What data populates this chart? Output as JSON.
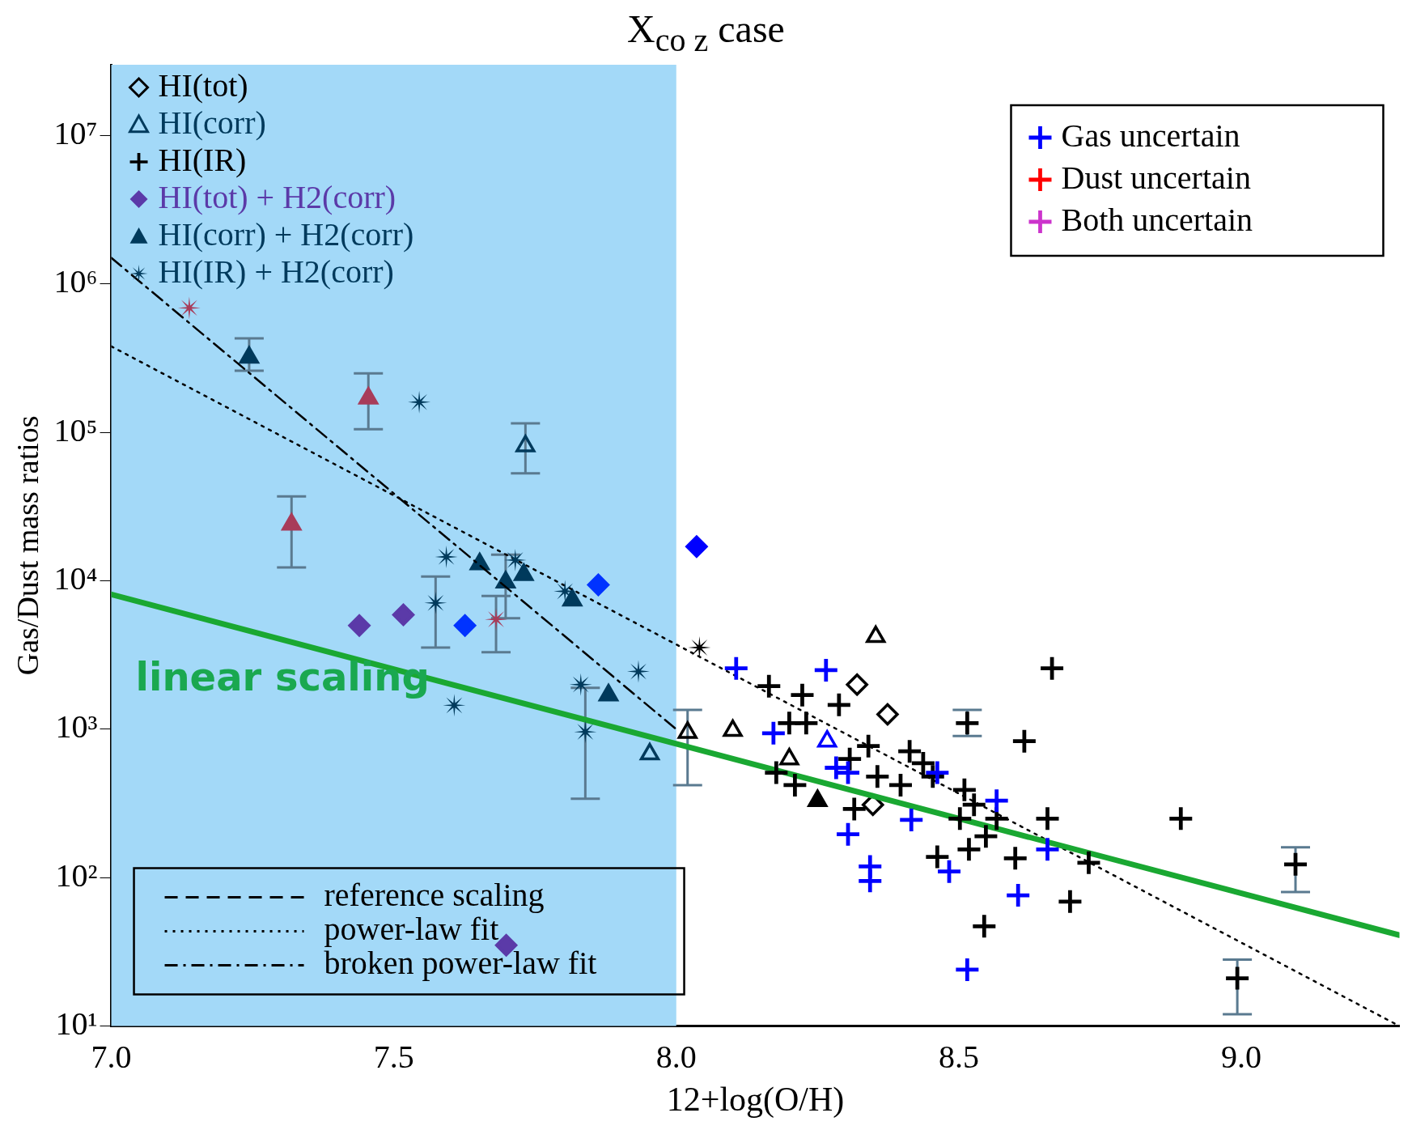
{
  "chart_data": {
    "type": "scatter",
    "title": "X$_{co z}$  case",
    "xlabel": "12+log(O/H)",
    "ylabel": "Gas/Dust mass ratios",
    "log": "y",
    "xlim": [
      7.0,
      9.28
    ],
    "ylim": [
      10,
      30000000
    ],
    "xticks": [
      {
        "value": 7,
        "label": "7.0"
      },
      {
        "value": 7.5,
        "label": "7.5"
      },
      {
        "value": 8,
        "label": "8.0"
      },
      {
        "value": 8.5,
        "label": "8.5"
      },
      {
        "value": 9,
        "label": "9.0"
      }
    ],
    "yticks": [
      {
        "value": 10,
        "label": "10¹"
      },
      {
        "value": 100,
        "label": "10²"
      },
      {
        "value": 1000,
        "label": "10³"
      },
      {
        "value": 10000,
        "label": "10⁴"
      },
      {
        "value": 100000,
        "label": "10⁵"
      },
      {
        "value": 1000000,
        "label": "10⁶"
      },
      {
        "value": 10000000,
        "label": "10⁷"
      }
    ],
    "grid": false,
    "legend": "left",
    "bands": [
      {
        "axis": "x",
        "from": 7.0,
        "to": 8.0,
        "color": "#a3d9f8"
      }
    ],
    "annotations": [
      "linear scaling"
    ],
    "series": [
      {
        "name": "HI(tot)",
        "marker": "diamond",
        "color": "#000000",
        "x": [
          8.32,
          8.374,
          8.348
        ],
        "values": [
          2000,
          1260,
          310
        ],
        "colors": [
          "#000000",
          "#000000",
          "#000000"
        ]
      },
      {
        "name": "HI(corr)",
        "marker": "triangle",
        "color": "#003a5c",
        "x": [
          7.733,
          7.953,
          8.02,
          8.1,
          8.353,
          8.267,
          8.2
        ],
        "values": [
          81000,
          680,
          950,
          980,
          4200,
          830,
          630
        ],
        "colors": [
          "#003a5c",
          "#003a5c",
          "#000000",
          "#000000",
          "#000000",
          "#0000ff",
          "#000000"
        ],
        "errors": [
          [
            53000,
            115000
          ],
          null,
          [
            420,
            1350
          ],
          null,
          null,
          null,
          null
        ]
      },
      {
        "name": "HI(IR)",
        "marker": "cross",
        "color": "#000000",
        "x": [
          8.164,
          8.223,
          8.288,
          8.2,
          8.23,
          8.34,
          8.307,
          8.413,
          8.437,
          8.356,
          8.397,
          8.454,
          8.177,
          8.21,
          8.315,
          8.51,
          8.527,
          8.502,
          8.567,
          8.548,
          8.518,
          8.462,
          8.6,
          8.73,
          8.697,
          8.545,
          8.665,
          8.616,
          8.515,
          8.893,
          9.096,
          8.993,
          8.657
        ],
        "values": [
          1950,
          1700,
          1460,
          1100,
          1100,
          770,
          630,
          710,
          590,
          480,
          420,
          480,
          510,
          420,
          290,
          390,
          310,
          250,
          250,
          190,
          155,
          138,
          135,
          126,
          69,
          47,
          2570,
          830,
          1100,
          250,
          123,
          21,
          250
        ],
        "colors": [
          "#000000",
          "#000000",
          "#000000",
          "#000000",
          "#000000",
          "#000000",
          "#000000",
          "#000000",
          "#000000",
          "#000000",
          "#000000",
          "#000000",
          "#000000",
          "#000000",
          "#000000",
          "#000000",
          "#000000",
          "#000000",
          "#000000",
          "#000000",
          "#000000",
          "#000000",
          "#000000",
          "#000000",
          "#000000",
          "#000000",
          "#000000",
          "#000000",
          "#000000",
          "#000000",
          "#000000",
          "#000000",
          "#000000"
        ],
        "errors": [
          null,
          null,
          null,
          null,
          null,
          null,
          null,
          null,
          null,
          null,
          null,
          null,
          null,
          null,
          null,
          null,
          null,
          null,
          null,
          null,
          null,
          null,
          null,
          null,
          null,
          null,
          null,
          null,
          [
            900,
            1350
          ],
          null,
          [
            80,
            160
          ],
          [
            12,
            28
          ],
          null
        ]
      },
      {
        "name": "HI(tot) + H2(corr)",
        "marker": "diamond",
        "color": "#5b3aa8",
        "x": [
          7.439,
          7.517,
          7.626,
          7.862,
          8.036,
          7.699
        ],
        "values": [
          5000,
          5900,
          5000,
          9400,
          17000,
          35
        ],
        "colors": [
          "#5b3aa8",
          "#5b3aa8",
          "#0033ff",
          "#0033ff",
          "#0000ff",
          "#5b3aa8"
        ]
      },
      {
        "name": "HI(corr) + H2(corr)",
        "marker": "triangle",
        "color": "#003a5c",
        "x": [
          7.244,
          7.455,
          7.319,
          7.652,
          7.698,
          7.73,
          7.816,
          7.88,
          8.25
        ],
        "values": [
          320000,
          170000,
          24000,
          13000,
          9800,
          11000,
          7400,
          1700,
          330
        ],
        "colors": [
          "#003a5c",
          "#a83c5a",
          "#a83c5a",
          "#003a5c",
          "#003a5c",
          "#003a5c",
          "#003a5c",
          "#003a5c",
          "#000000"
        ],
        "errors": [
          [
            260000,
            430000
          ],
          [
            105000,
            250000
          ],
          [
            12300,
            37000
          ],
          null,
          [
            5600,
            15000
          ],
          null,
          null,
          null,
          null
        ]
      },
      {
        "name": "HI(IR) + H2(corr)",
        "marker": "star",
        "color": "#003a5c",
        "x": [
          7.138,
          7.545,
          7.593,
          7.574,
          7.607,
          7.681,
          7.803,
          7.715,
          7.831,
          7.839,
          7.933,
          8.041
        ],
        "values": [
          690000,
          160000,
          14500,
          7100,
          1450,
          5500,
          8500,
          13800,
          2000,
          960,
          2450,
          3550
        ],
        "colors": [
          "#a83c5a",
          "#003a5c",
          "#003a5c",
          "#003a5c",
          "#003a5c",
          "#a83c5a",
          "#003a5c",
          "#003a5c",
          "#003a5c",
          "#003a5c",
          "#003a5c",
          "#000000"
        ],
        "errors": [
          null,
          null,
          null,
          [
            3550,
            10700
          ],
          null,
          [
            3300,
            7900
          ],
          null,
          null,
          null,
          [
            340,
            1900
          ],
          null,
          null
        ]
      },
      {
        "name": "Gas uncertain",
        "marker": "cross",
        "color": "#0000ff",
        "x": [
          8.106,
          8.265,
          8.172,
          8.283,
          8.304,
          8.462,
          8.416,
          8.304,
          8.343,
          8.343,
          8.483,
          8.605,
          8.515,
          8.657,
          8.567
        ],
        "values": [
          2570,
          2500,
          940,
          550,
          510,
          510,
          245,
          196,
          119,
          95,
          110,
          76,
          24,
          155,
          330
        ]
      },
      {
        "name": "Dust uncertain",
        "marker": "cross",
        "color": "#ff0000"
      },
      {
        "name": "Both uncertain",
        "marker": "cross",
        "color": "#cc33cc"
      },
      {
        "name": "reference scaling",
        "type": "line",
        "line_style": "dashed",
        "color": "#000000"
      },
      {
        "name": "power-law fit",
        "type": "line",
        "line_style": "dotted",
        "color": "#000000",
        "x": [
          7.0,
          9.28
        ],
        "values": [
          380000,
          10
        ]
      },
      {
        "name": "broken power-law fit",
        "type": "line",
        "line_style": "dashdot",
        "color": "#000000",
        "x": [
          7.0,
          8.0
        ],
        "values": [
          1500000,
          1000
        ]
      },
      {
        "type": "line",
        "line_style": "solid",
        "color": "#1aa832",
        "x": [
          7.0,
          9.28
        ],
        "values": [
          8100,
          41
        ]
      }
    ]
  }
}
